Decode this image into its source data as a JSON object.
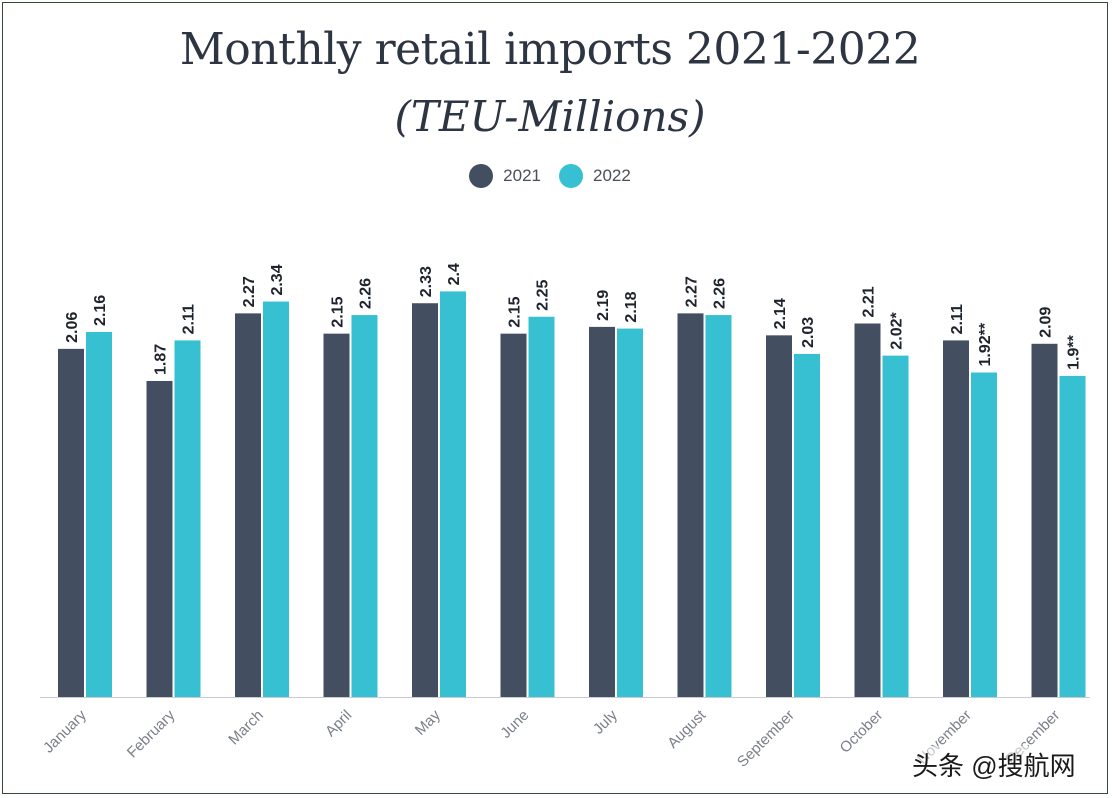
{
  "chart_data": {
    "type": "bar",
    "title": "Monthly retail imports 2021-2022",
    "subtitle": "(TEU-Millions)",
    "categories": [
      "January",
      "February",
      "March",
      "April",
      "May",
      "June",
      "July",
      "August",
      "September",
      "October",
      "November",
      "December"
    ],
    "series": [
      {
        "name": "2021",
        "color": "#434f61",
        "values": [
          2.06,
          1.87,
          2.27,
          2.15,
          2.33,
          2.15,
          2.19,
          2.27,
          2.14,
          2.21,
          2.11,
          2.09
        ],
        "labels": [
          "2.06",
          "1.87",
          "2.27",
          "2.15",
          "2.33",
          "2.15",
          "2.19",
          "2.27",
          "2.14",
          "2.21",
          "2.11",
          "2.09"
        ]
      },
      {
        "name": "2022",
        "color": "#36c0d1",
        "values": [
          2.16,
          2.11,
          2.34,
          2.26,
          2.4,
          2.25,
          2.18,
          2.26,
          2.03,
          2.02,
          1.92,
          1.9
        ],
        "labels": [
          "2.16",
          "2.11",
          "2.34",
          "2.26",
          "2.4",
          "2.25",
          "2.18",
          "2.26",
          "2.03",
          "2.02*",
          "1.92**",
          "1.9**"
        ]
      }
    ],
    "xlabel": "",
    "ylabel": "",
    "ylim": [
      0,
      2.4
    ],
    "legend": "top-center",
    "grid": false
  },
  "watermark": "头条 @搜航网"
}
